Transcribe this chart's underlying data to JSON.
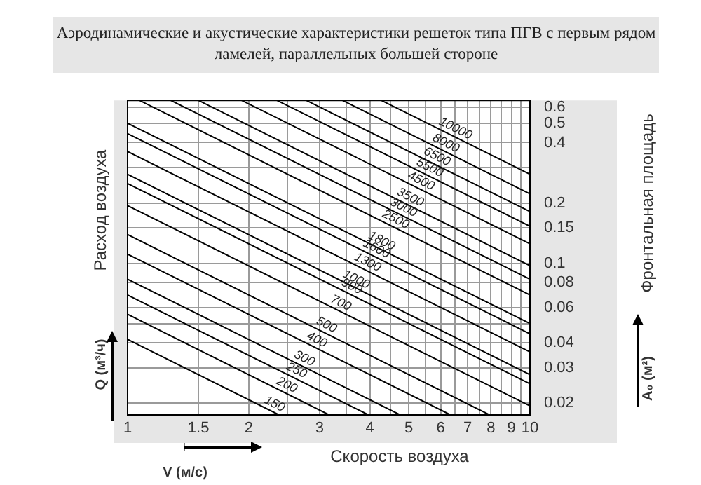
{
  "chart_data": {
    "type": "line",
    "title": "Аэродинамические и акустические характеристики решеток типа ПГВ с первым рядом ламелей, параллельных большей стороне",
    "xlabel": "Скорость воздуха",
    "ylabel": "Фронтальная площадь",
    "annotations": [
      "Расход воздуха",
      "Q (м³/ч)",
      "A₀ (м²)",
      "V (м/с)"
    ],
    "log": "xy",
    "grid": true,
    "legend": false,
    "marker": "none",
    "line_style": "solid",
    "xlim": [
      1,
      10
    ],
    "ylim": [
      0.0175,
      0.65
    ],
    "xticks": [
      1,
      1.5,
      2,
      {
        "value": 2.5,
        "label": null
      },
      3,
      {
        "value": 3.5,
        "label": null
      },
      4,
      {
        "value": 4.5,
        "label": null
      },
      5,
      {
        "value": 5.5,
        "label": null
      },
      6,
      {
        "value": 6.5,
        "label": null
      },
      7,
      {
        "value": 7.5,
        "label": null
      },
      8,
      {
        "value": 8.5,
        "label": null
      },
      9,
      {
        "value": 9.5,
        "label": null
      },
      10
    ],
    "yticks": [
      0.02,
      0.03,
      0.04,
      {
        "value": 0.05,
        "label": null
      },
      0.06,
      0.08,
      0.1,
      0.15,
      0.2,
      {
        "value": 0.3,
        "label": null
      },
      0.4,
      0.5,
      0.6
    ],
    "series": [
      {
        "name": "150",
        "color": "#000000",
        "x": [
          1,
          2.38
        ],
        "values": [
          0.0417,
          0.0175
        ]
      },
      {
        "name": "200",
        "color": "#000000",
        "x": [
          1,
          3.17
        ],
        "values": [
          0.0556,
          0.0175
        ]
      },
      {
        "name": "250",
        "color": "#000000",
        "x": [
          1,
          3.97
        ],
        "values": [
          0.0694,
          0.0175
        ]
      },
      {
        "name": "300",
        "color": "#000000",
        "x": [
          1,
          4.76
        ],
        "values": [
          0.0833,
          0.0175
        ]
      },
      {
        "name": "400",
        "color": "#000000",
        "x": [
          1,
          6.35
        ],
        "values": [
          0.111,
          0.0175
        ]
      },
      {
        "name": "500",
        "color": "#000000",
        "x": [
          1,
          7.94
        ],
        "values": [
          0.139,
          0.0175
        ]
      },
      {
        "name": "700",
        "color": "#000000",
        "x": [
          1,
          10
        ],
        "values": [
          0.194,
          0.0194
        ]
      },
      {
        "name": "900",
        "color": "#000000",
        "x": [
          1,
          10
        ],
        "values": [
          0.25,
          0.025
        ]
      },
      {
        "name": "1000",
        "color": "#000000",
        "x": [
          1,
          10
        ],
        "values": [
          0.278,
          0.0278
        ]
      },
      {
        "name": "1300",
        "color": "#000000",
        "x": [
          1,
          10
        ],
        "values": [
          0.361,
          0.0361
        ]
      },
      {
        "name": "1600",
        "color": "#000000",
        "x": [
          1,
          10
        ],
        "values": [
          0.444,
          0.0444
        ]
      },
      {
        "name": "1800",
        "color": "#000000",
        "x": [
          1,
          10
        ],
        "values": [
          0.5,
          0.05
        ]
      },
      {
        "name": "2500",
        "color": "#000000",
        "x": [
          1.07,
          10
        ],
        "values": [
          0.65,
          0.0694
        ]
      },
      {
        "name": "3000",
        "color": "#000000",
        "x": [
          1.28,
          10
        ],
        "values": [
          0.65,
          0.0833
        ]
      },
      {
        "name": "3500",
        "color": "#000000",
        "x": [
          1.5,
          10
        ],
        "values": [
          0.65,
          0.0972
        ]
      },
      {
        "name": "4500",
        "color": "#000000",
        "x": [
          1.92,
          10
        ],
        "values": [
          0.65,
          0.125
        ]
      },
      {
        "name": "5500",
        "color": "#000000",
        "x": [
          2.35,
          10
        ],
        "values": [
          0.65,
          0.153
        ]
      },
      {
        "name": "6500",
        "color": "#000000",
        "x": [
          2.78,
          10
        ],
        "values": [
          0.65,
          0.181
        ]
      },
      {
        "name": "8000",
        "color": "#000000",
        "x": [
          3.42,
          10
        ],
        "values": [
          0.65,
          0.222
        ]
      },
      {
        "name": "10000",
        "color": "#000000",
        "x": [
          4.27,
          10
        ],
        "values": [
          0.65,
          0.278
        ]
      }
    ]
  }
}
